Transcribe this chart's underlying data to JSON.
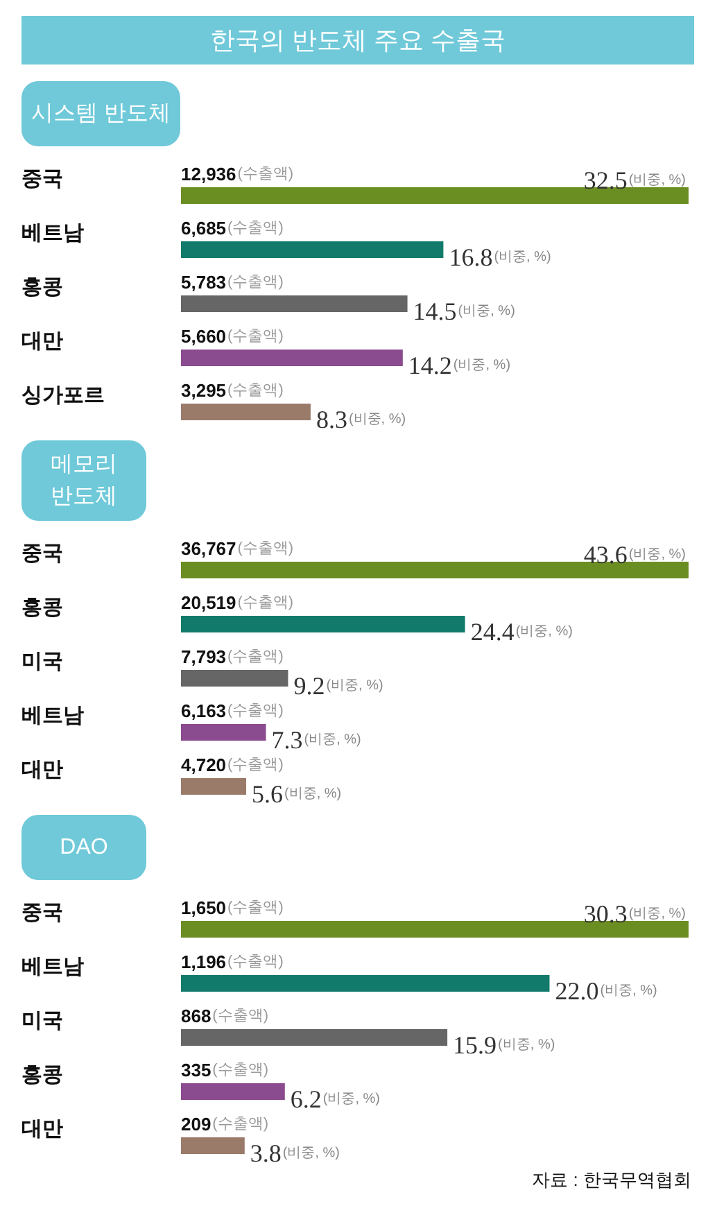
{
  "chart_data": [
    {
      "type": "bar",
      "orientation": "horizontal",
      "title": "한국의 반도체 주요 수출국",
      "subtitle": "시스템 반도체",
      "categories": [
        "중국",
        "베트남",
        "홍콩",
        "대만",
        "싱가포르"
      ],
      "values": [
        32.5,
        16.8,
        14.5,
        14.2,
        8.3
      ],
      "colors": [
        "#6b8e23",
        "#127a6b",
        "#666666",
        "#8a4b8f",
        "#9a7b6a"
      ],
      "value_labels": [
        "32.5(비중, %)",
        "16.8(비중, %)",
        "14.5(비중, %)",
        "14.2(비중, %)",
        "8.3(비중, %)"
      ],
      "xlim": [
        0,
        32.5
      ],
      "tick_labels": "y",
      "annotations": [
        {
          "text": "12,936(수출액)",
          "y": "중국"
        },
        {
          "text": "6,685(수출액)",
          "y": "베트남"
        },
        {
          "text": "5,783(수출액)",
          "y": "홍콩"
        },
        {
          "text": "5,660(수출액)",
          "y": "대만"
        },
        {
          "text": "3,295(수출액)",
          "y": "싱가포르"
        }
      ]
    },
    {
      "type": "bar",
      "orientation": "horizontal",
      "title": "메모리\n반도체",
      "categories": [
        "중국",
        "홍콩",
        "미국",
        "베트남",
        "대만"
      ],
      "values": [
        43.6,
        24.4,
        9.2,
        7.3,
        5.6
      ],
      "colors": [
        "#6b8e23",
        "#127a6b",
        "#666666",
        "#8a4b8f",
        "#9a7b6a"
      ],
      "value_labels": [
        "43.6(비중, %)",
        "24.4(비중, %)",
        "9.2(비중, %)",
        "7.3(비중, %)",
        "5.6(비중, %)"
      ],
      "xlim": [
        0,
        43.6
      ],
      "tick_labels": "y",
      "annotations": [
        {
          "text": "36,767(수출액)",
          "y": "중국"
        },
        {
          "text": "20,519(수출액)",
          "y": "홍콩"
        },
        {
          "text": "7,793(수출액)",
          "y": "미국"
        },
        {
          "text": "6,163(수출액)",
          "y": "베트남"
        },
        {
          "text": "4,720(수출액)",
          "y": "대만"
        }
      ]
    },
    {
      "type": "bar",
      "orientation": "horizontal",
      "title": "DAO",
      "categories": [
        "중국",
        "베트남",
        "미국",
        "홍콩",
        "대만"
      ],
      "values": [
        30.3,
        22.0,
        15.9,
        6.2,
        3.8
      ],
      "colors": [
        "#6b8e23",
        "#127a6b",
        "#666666",
        "#8a4b8f",
        "#9a7b6a"
      ],
      "value_labels": [
        "30.3(비중, %)",
        "22.0(비중, %)",
        "15.9(비중, %)",
        "6.2(비중, %)",
        "3.8(비중, %)"
      ],
      "xlim": [
        0,
        30.3
      ],
      "tick_labels": "y",
      "annotations": [
        {
          "text": "1,650(수출액)",
          "y": "중국"
        },
        {
          "text": "1,196(수출액)",
          "y": "베트남"
        },
        {
          "text": "868(수출액)",
          "y": "미국"
        },
        {
          "text": "335(수출액)",
          "y": "홍콩"
        },
        {
          "text": "209(수출액)",
          "y": "대만"
        },
        "자료 : 한국무역협회"
      ]
    }
  ]
}
